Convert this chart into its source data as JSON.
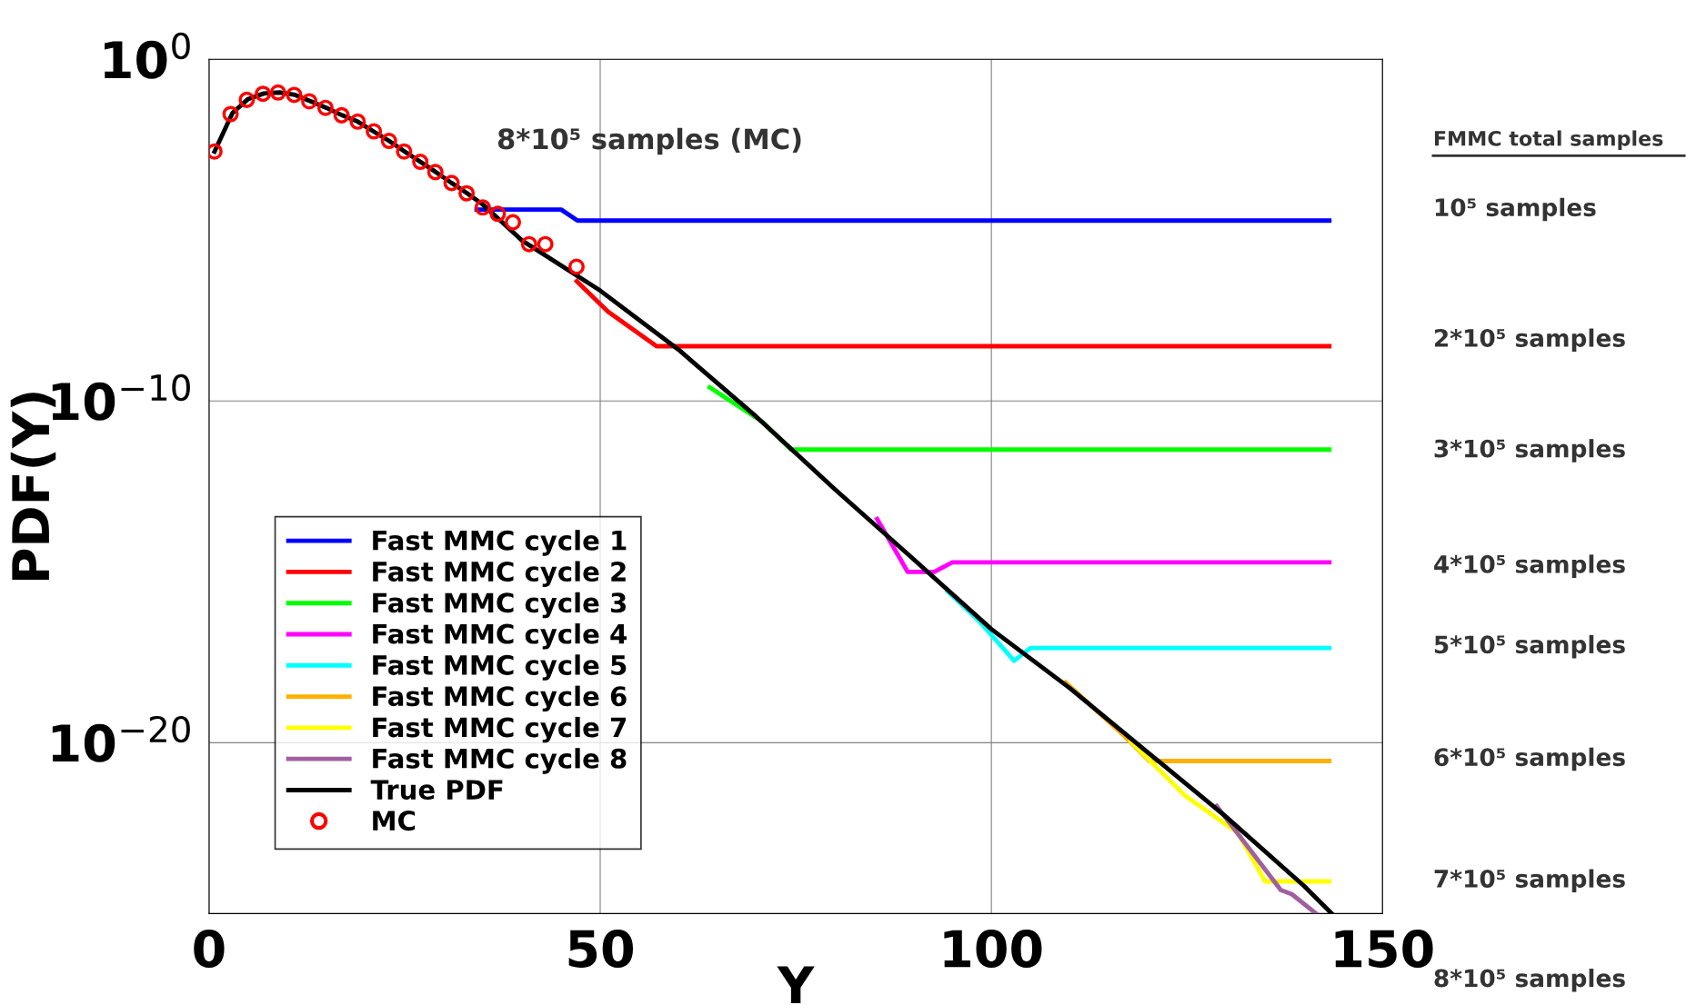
{
  "chart_data": {
    "type": "line",
    "xlabel": "Y",
    "ylabel": "PDF(Y)",
    "log": "y",
    "xlim": [
      0,
      150
    ],
    "xticks": [
      0,
      50,
      100,
      150
    ],
    "ylim": [
      1e-25,
      1
    ],
    "yticks": [
      {
        "value": 1,
        "label": "10$^{0}$"
      },
      {
        "value": 1e-10,
        "label": "10$^{−10}$"
      },
      {
        "value": 1e-20,
        "label": "10$^{−20}$"
      }
    ],
    "grid": true,
    "legend": "lower left",
    "series": [
      {
        "name": "Fast MMC cycle 1",
        "color": "#0000ff",
        "x": [
          34.2,
          45,
          47.1,
          143.2
        ],
        "values": [
          4e-05,
          4e-05,
          1.9e-05,
          1.9e-05
        ]
      },
      {
        "name": "Fast MMC cycle 2",
        "color": "#ff0000",
        "x": [
          47,
          51,
          57.2,
          143.2
        ],
        "values": [
          3.2e-07,
          4.1e-08,
          4e-09,
          4e-09
        ]
      },
      {
        "name": "Fast MMC cycle 3",
        "color": "#00ff00",
        "x": [
          64,
          70.7,
          74.4,
          143.2
        ],
        "values": [
          2.5e-10,
          2.5e-11,
          3.8e-12,
          3.8e-12
        ]
      },
      {
        "name": "Fast MMC cycle 4",
        "color": "#ff00ff",
        "x": [
          85.4,
          89.3,
          92.7,
          95,
          143.2
        ],
        "values": [
          3.5e-14,
          1e-15,
          1e-15,
          1.9e-15,
          1.9e-15
        ]
      },
      {
        "name": "Fast MMC cycle 5",
        "color": "#00ffff",
        "x": [
          94.4,
          98.5,
          102.9,
          105,
          143.2
        ],
        "values": [
          2.7e-16,
          3.5e-17,
          2.5e-18,
          5.9e-18,
          5.9e-18
        ]
      },
      {
        "name": "Fast MMC cycle 6",
        "color": "#ffb000",
        "x": [
          109.5,
          117.1,
          120.2,
          143.2
        ],
        "values": [
          5.8e-19,
          1.5e-20,
          2.9e-21,
          2.9e-21
        ]
      },
      {
        "name": "Fast MMC cycle 7",
        "color": "#ffff00",
        "x": [
          117.8,
          124.7,
          131.5,
          135,
          143.2
        ],
        "values": [
          1.1e-20,
          2.9e-22,
          2.3e-23,
          8.7e-25,
          8.7e-25
        ]
      },
      {
        "name": "Fast MMC cycle 8",
        "color": "#a060a0",
        "x": [
          128.8,
          137,
          138.4,
          141.5
        ],
        "values": [
          1.4e-22,
          4.9e-25,
          3.7e-25,
          1e-25
        ]
      },
      {
        "name": "True PDF",
        "color": "#000000",
        "x": [
          0.7,
          3,
          5,
          7,
          9,
          11,
          13,
          15,
          17,
          19,
          21,
          23,
          25,
          27,
          29,
          31,
          33,
          35,
          40,
          50,
          60,
          70,
          80,
          90,
          100,
          110,
          120,
          130,
          140,
          143.5
        ],
        "values": [
          0.002,
          0.027,
          0.069,
          0.1,
          0.107,
          0.091,
          0.059,
          0.038,
          0.023,
          0.015,
          0.0078,
          0.0041,
          0.002,
          0.001,
          0.0005,
          0.00024,
          0.00012,
          5.6e-05,
          5e-06,
          1.7e-07,
          3.2e-09,
          3.4e-11,
          2.6e-13,
          2.4e-15,
          2.1e-17,
          4e-19,
          5.2e-21,
          6.8e-23,
          6.3e-25,
          1e-25
        ]
      },
      {
        "name": "MC",
        "type": "scatter",
        "marker": "circle",
        "color": "#ff0000",
        "x": [
          0.69,
          2.75,
          4.82,
          6.89,
          8.82,
          10.88,
          12.81,
          14.88,
          16.94,
          19.0,
          21.07,
          23.0,
          24.93,
          27.0,
          28.93,
          31.0,
          32.92,
          34.99,
          36.91,
          38.84,
          40.91,
          42.98,
          46.97
        ],
        "values": [
          0.002,
          0.025,
          0.065,
          0.098,
          0.107,
          0.091,
          0.059,
          0.038,
          0.023,
          0.015,
          0.0078,
          0.0041,
          0.002,
          0.001,
          0.0005,
          0.00024,
          0.00012,
          4.6e-05,
          3e-05,
          1.7e-05,
          3.9e-06,
          3.9e-06,
          8.5e-07
        ]
      }
    ],
    "annotations": [
      "8*10⁵ samples (MC)",
      "FMMC total samples",
      "10⁵ samples",
      "2*10⁵ samples",
      "3*10⁵ samples",
      "4*10⁵ samples",
      "5*10⁵ samples",
      "6*10⁵ samples",
      "7*10⁵ samples",
      "8*10⁵ samples"
    ]
  }
}
